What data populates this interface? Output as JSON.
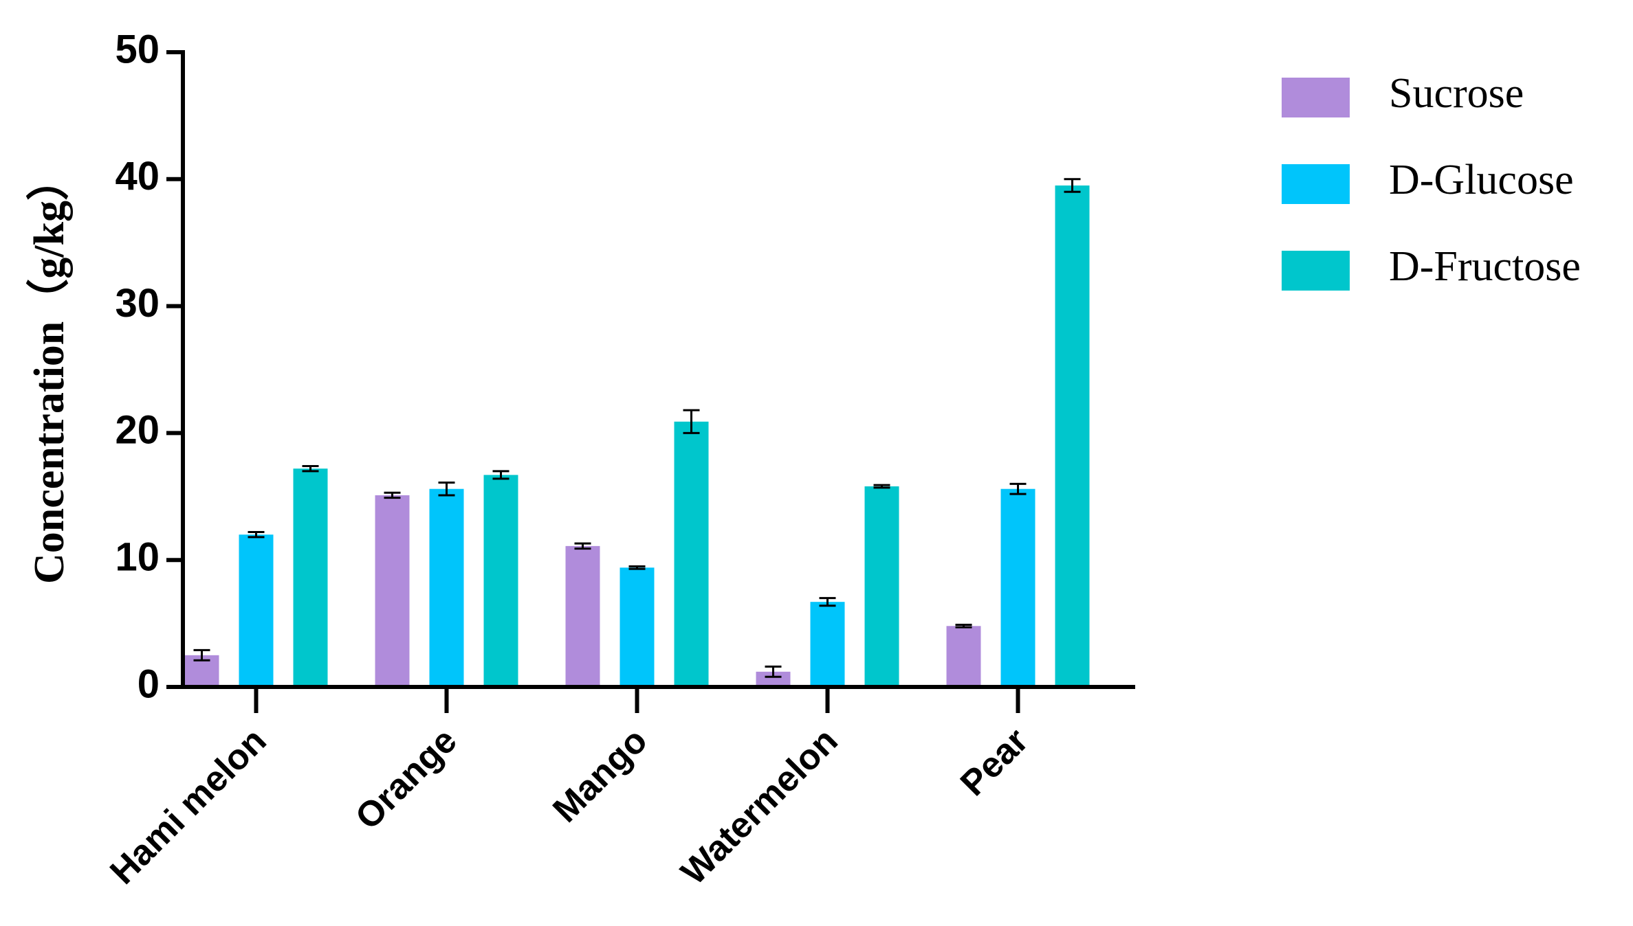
{
  "chart_data": {
    "type": "bar",
    "y_label": "Concentration（g/kg）",
    "categories": [
      "Hami melon",
      "Orange",
      "Mango",
      "Watermelon",
      "Pear"
    ],
    "series": [
      {
        "name": "Sucrose",
        "color": "#b08cdb",
        "values": [
          2.5,
          15.1,
          11.1,
          1.2,
          4.8
        ],
        "errors": [
          0.4,
          0.2,
          0.2,
          0.4,
          0.1
        ]
      },
      {
        "name": "D-Glucose",
        "color": "#00c5fb",
        "values": [
          12.0,
          15.6,
          9.4,
          6.7,
          15.6
        ],
        "errors": [
          0.2,
          0.5,
          0.1,
          0.3,
          0.4
        ]
      },
      {
        "name": "D-Fructose",
        "color": "#00c6cc",
        "values": [
          17.2,
          16.7,
          20.9,
          15.8,
          39.5
        ],
        "errors": [
          0.2,
          0.3,
          0.9,
          0.1,
          0.5
        ]
      }
    ],
    "ylim": [
      0,
      50
    ],
    "yticks": [
      0,
      10,
      20,
      30,
      40,
      50
    ],
    "grid": false
  }
}
